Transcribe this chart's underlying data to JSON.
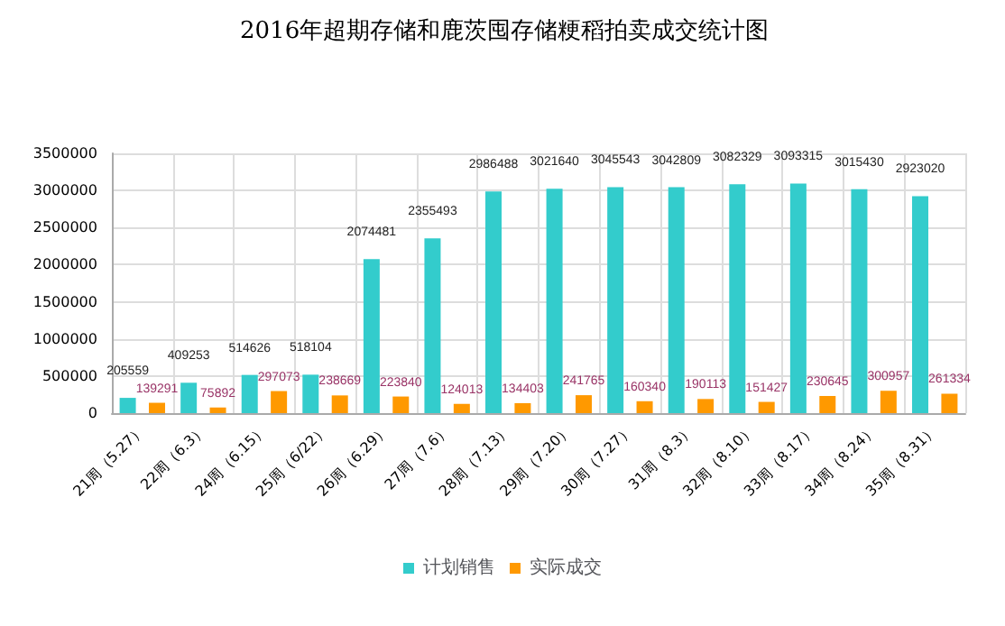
{
  "chart_data": {
    "type": "bar",
    "title": "2016年超期存储和鹿茨囤存储粳稻拍卖成交统计图",
    "categories": [
      "21周（5.27）",
      "22周（6.3）",
      "24周（6.15）",
      "25周（6/22）",
      "26周（6.29）",
      "27周（7.6）",
      "28周（7.13）",
      "29周（7.20）",
      "30周（7.27）",
      "31周（8.3）",
      "32周（8.10）",
      "33周（8.17）",
      "34周（8.24）",
      "35周（8.31）"
    ],
    "series": [
      {
        "name": "计划销售",
        "color": "#33cccc",
        "values": [
          205559,
          409253,
          514626,
          518104,
          2074481,
          2355493,
          2986488,
          3021640,
          3045543,
          3042809,
          3082329,
          3093315,
          3015430,
          2923020
        ]
      },
      {
        "name": "实际成交",
        "color": "#ff9900",
        "values": [
          139291,
          75892,
          297073,
          238669,
          223840,
          124013,
          134403,
          241765,
          160340,
          190113,
          151427,
          230645,
          300957,
          261334
        ]
      }
    ],
    "ylim": [
      0,
      3500000
    ],
    "yticks": [
      0,
      500000,
      1000000,
      1500000,
      2000000,
      2500000,
      3000000,
      3500000
    ],
    "grid": true,
    "legend": "bottom",
    "data_labels": true
  }
}
